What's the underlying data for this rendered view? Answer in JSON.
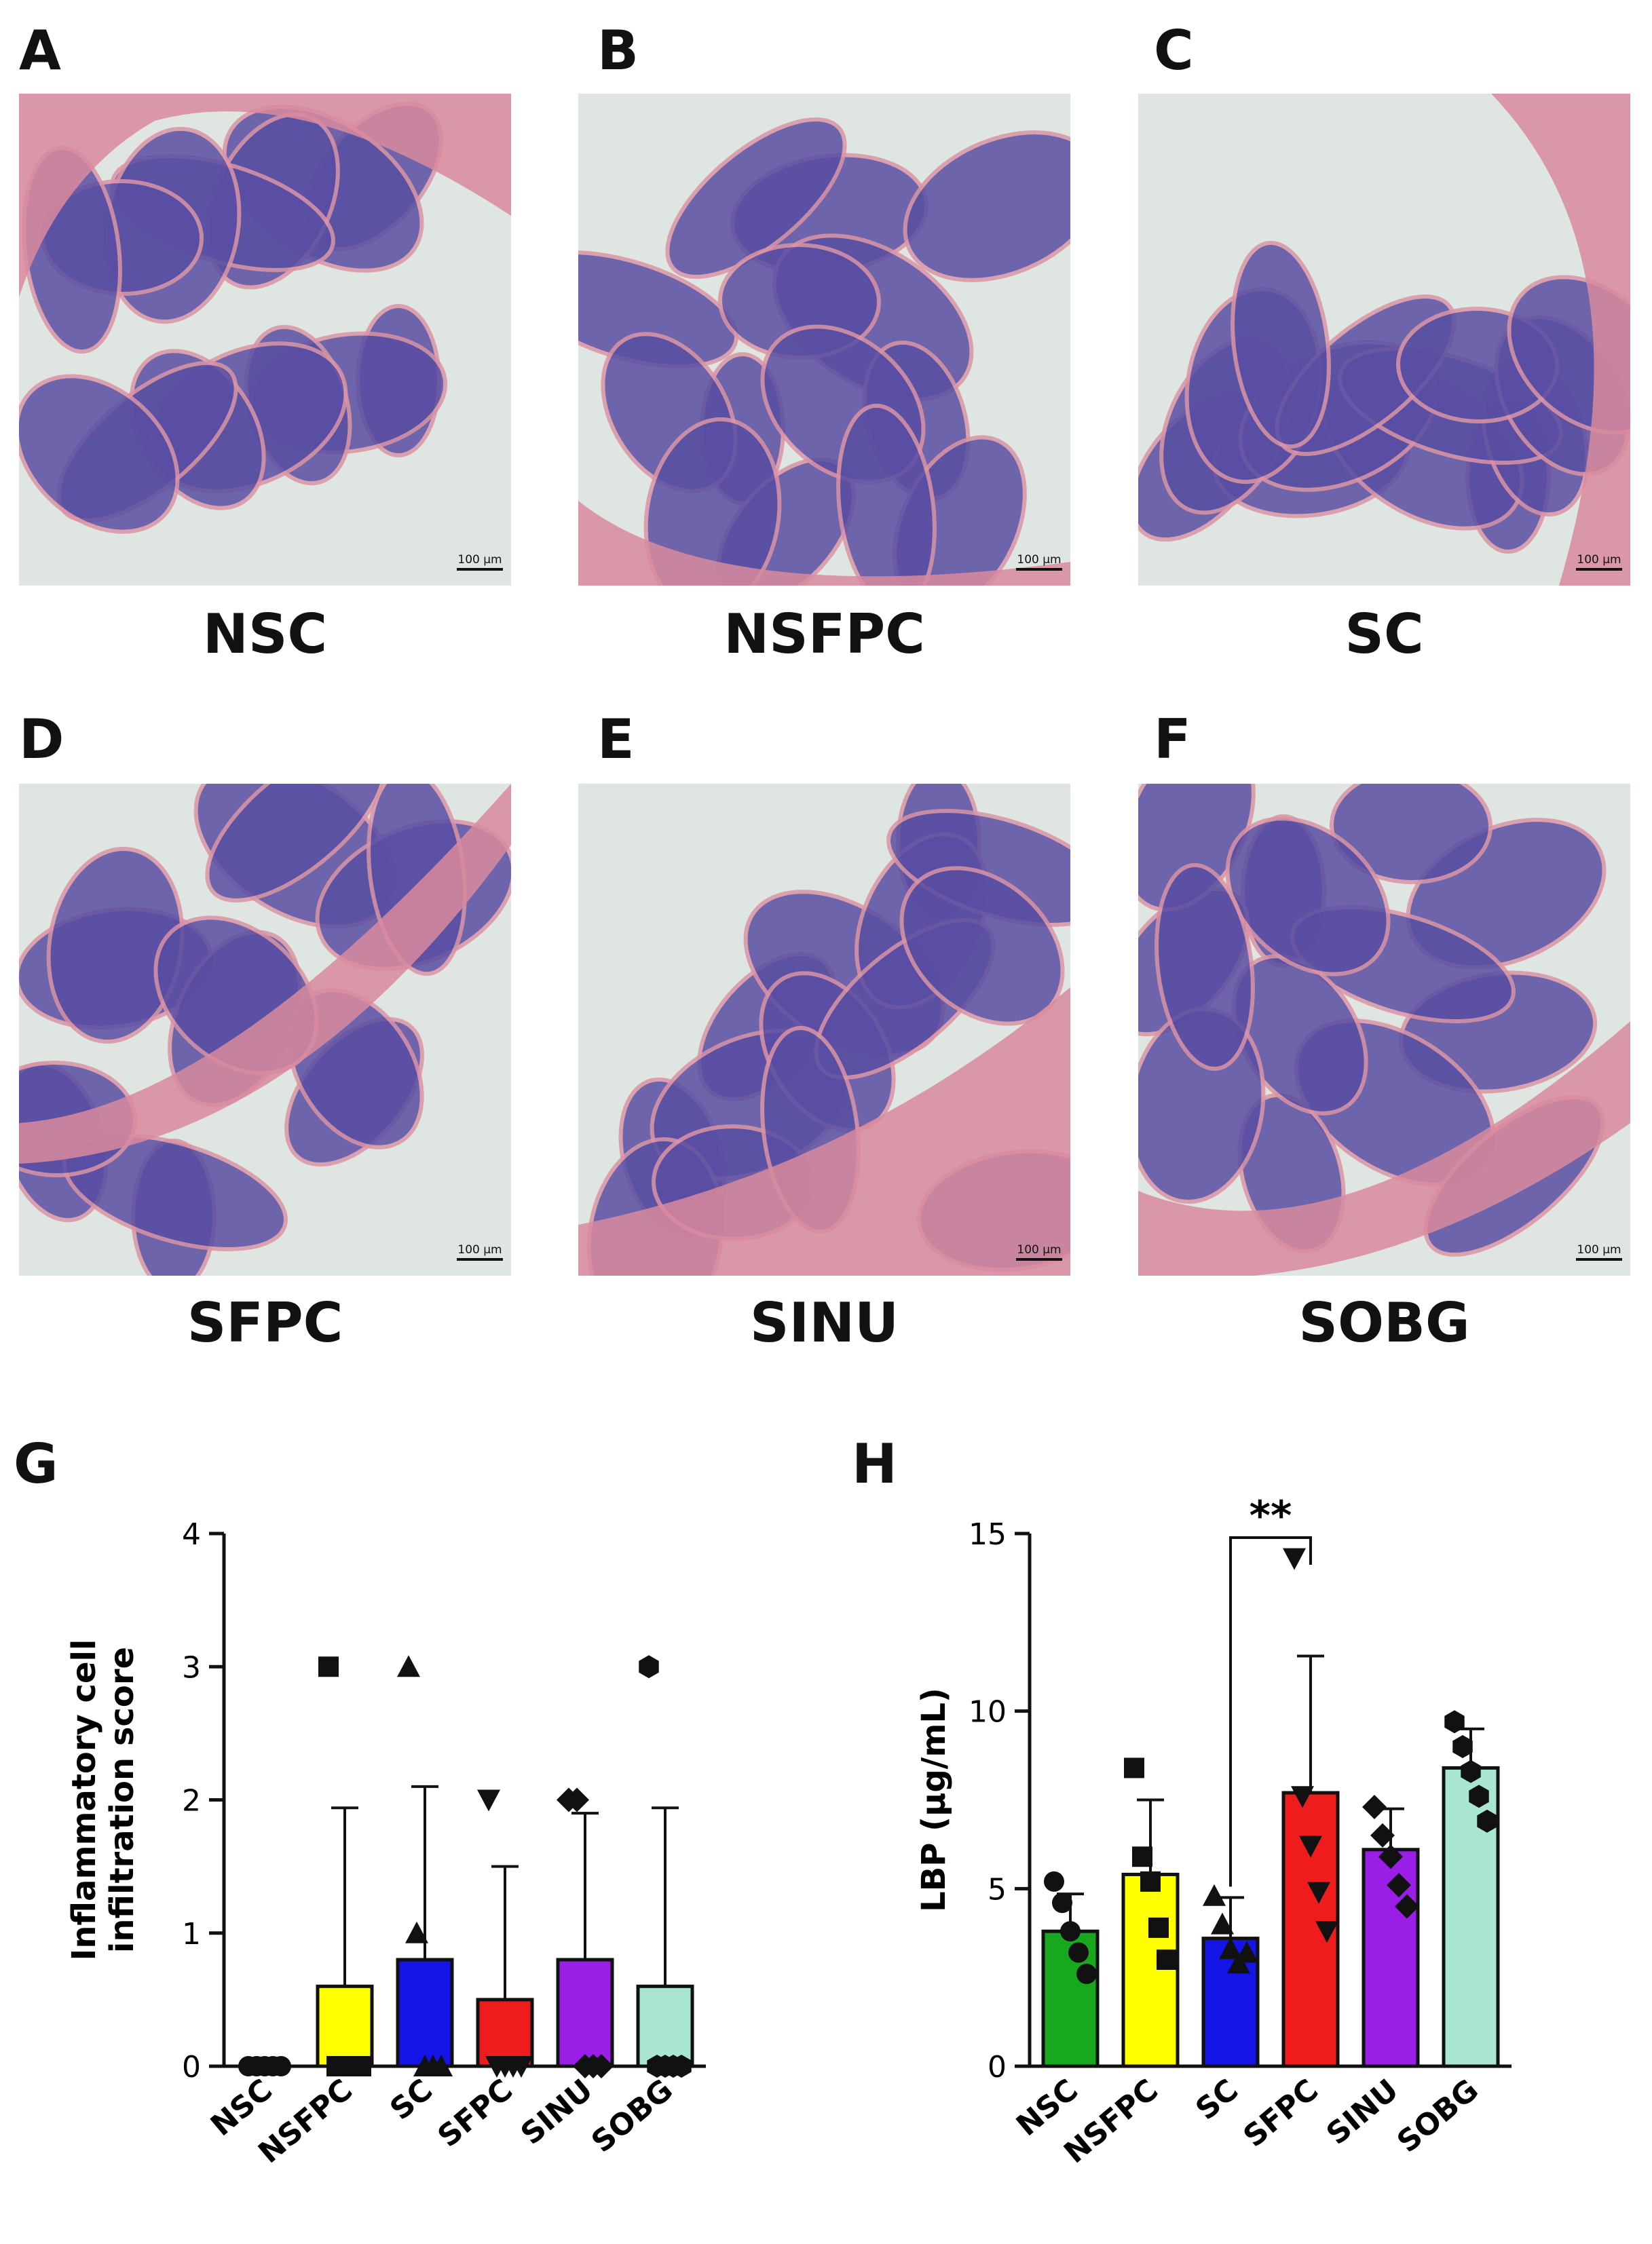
{
  "panels": [
    {
      "letter": "A",
      "group": "NSC",
      "scale": "100 µm"
    },
    {
      "letter": "B",
      "group": "NSFPC",
      "scale": "100 µm"
    },
    {
      "letter": "C",
      "group": "SC",
      "scale": "100 µm"
    },
    {
      "letter": "D",
      "group": "SFPC",
      "scale": "100 µm"
    },
    {
      "letter": "E",
      "group": "SINU",
      "scale": "100 µm"
    },
    {
      "letter": "F",
      "group": "SOBG",
      "scale": "100 µm"
    }
  ],
  "colors": {
    "NSC": "#18a81f",
    "NSFPC": "#ffff00",
    "SC": "#1414e6",
    "SFPC": "#ee1c1c",
    "SINU": "#9a1ee6",
    "SOBG": "#a8e6cf",
    "tissue_mucosa": "#4a3d9c",
    "tissue_muscle": "#d98a9e",
    "background": "#dfe5e0"
  },
  "chart_data": [
    {
      "panel": "G",
      "type": "bar",
      "ylabel_line1": "Inflammatory cell",
      "ylabel_line2": "infiltration score",
      "xlabel": "",
      "categories": [
        "NSC",
        "NSFPC",
        "SC",
        "SFPC",
        "SINU",
        "SOBG"
      ],
      "values": [
        0,
        0.6,
        0.8,
        0.5,
        0.8,
        0.6
      ],
      "error_sd": [
        0,
        1.34,
        1.3,
        1.0,
        1.1,
        1.34
      ],
      "points": [
        [
          0,
          0,
          0,
          0,
          0
        ],
        [
          3,
          0,
          0,
          0,
          0
        ],
        [
          3,
          1,
          0,
          0,
          0
        ],
        [
          2,
          0,
          0,
          0,
          0
        ],
        [
          2,
          2,
          0,
          0,
          0
        ],
        [
          3,
          0,
          0,
          0,
          0
        ]
      ],
      "markers": [
        "circle",
        "square",
        "triangle",
        "triangle-down",
        "diamond",
        "hexagon"
      ],
      "ylim": [
        0,
        4
      ],
      "yticks": [
        "0",
        "1",
        "2",
        "3",
        "4"
      ]
    },
    {
      "panel": "H",
      "type": "bar",
      "ylabel": "LBP (µg/mL)",
      "xlabel": "",
      "categories": [
        "NSC",
        "NSFPC",
        "SC",
        "SFPC",
        "SINU",
        "SOBG"
      ],
      "values": [
        3.8,
        5.4,
        3.6,
        7.7,
        6.1,
        8.4
      ],
      "error_sd": [
        1.05,
        2.1,
        1.15,
        3.85,
        1.15,
        1.1
      ],
      "points": [
        [
          5.2,
          4.6,
          3.8,
          3.2,
          2.6
        ],
        [
          8.4,
          5.9,
          5.2,
          3.9,
          3.0
        ],
        [
          4.8,
          4.0,
          3.3,
          2.9,
          3.2
        ],
        [
          14.3,
          7.6,
          6.2,
          4.9,
          3.8
        ],
        [
          7.3,
          6.5,
          5.9,
          5.1,
          4.5
        ],
        [
          9.7,
          9.0,
          8.3,
          7.6,
          6.9
        ]
      ],
      "markers": [
        "circle",
        "square",
        "triangle",
        "triangle-down",
        "diamond",
        "hexagon"
      ],
      "ylim": [
        0,
        15
      ],
      "yticks": [
        "0",
        "5",
        "10",
        "15"
      ],
      "significance": {
        "from": "SC",
        "to": "SFPC",
        "label": "**"
      }
    }
  ],
  "letters_charts": {
    "G": "G",
    "H": "H"
  }
}
